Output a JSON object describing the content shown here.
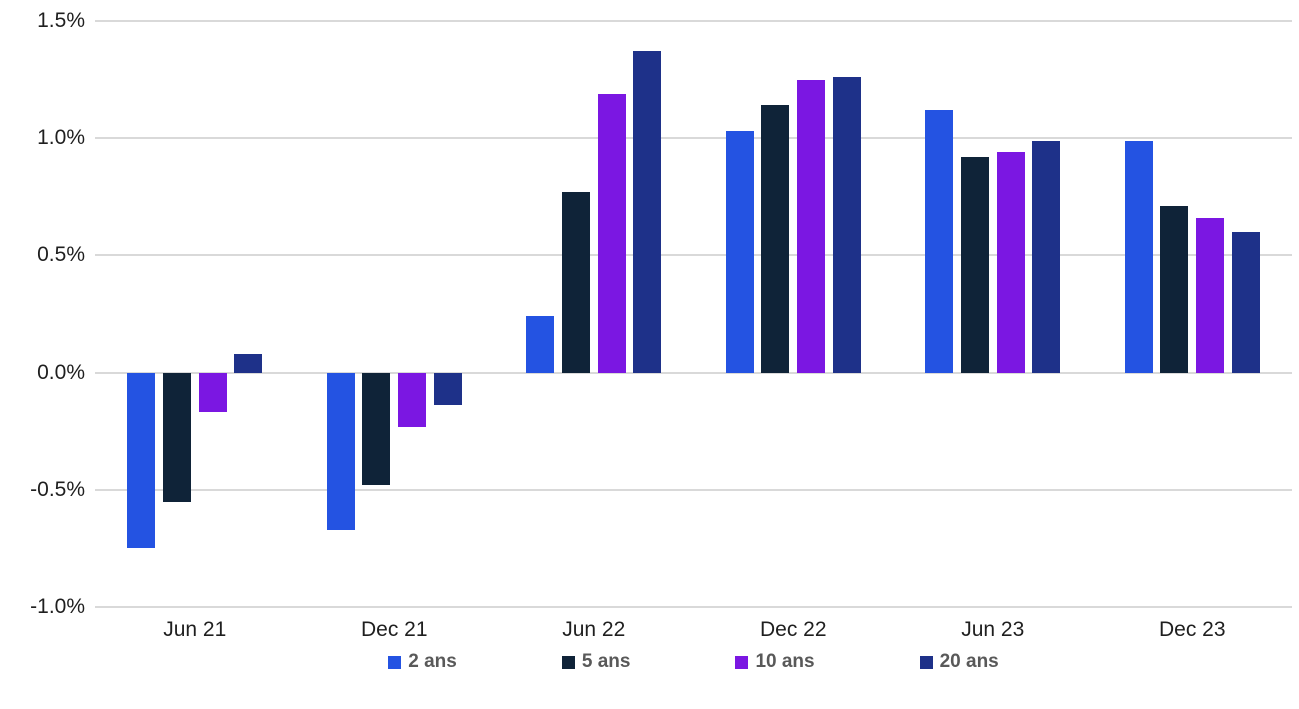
{
  "chart_data": {
    "type": "bar",
    "title": "",
    "xlabel": "",
    "ylabel": "",
    "ylim": [
      -1.0,
      1.5
    ],
    "grid": true,
    "legend_position": "bottom",
    "categories": [
      "Jun 21",
      "Dec 21",
      "Jun 22",
      "Dec 22",
      "Jun 23",
      "Dec 23"
    ],
    "yticks": [
      {
        "label": "1.5%",
        "value": 1.5
      },
      {
        "label": "1.0%",
        "value": 1.0
      },
      {
        "label": "0.5%",
        "value": 0.5
      },
      {
        "label": "0.0%",
        "value": 0.0
      },
      {
        "label": "-0.5%",
        "value": -0.5
      },
      {
        "label": "-1.0%",
        "value": -1.0
      }
    ],
    "series": [
      {
        "name": "2 ans",
        "color": "#2453E2",
        "values": [
          -0.75,
          -0.67,
          0.24,
          1.03,
          1.12,
          0.99
        ]
      },
      {
        "name": "5 ans",
        "color": "#0F2338",
        "values": [
          -0.55,
          -0.48,
          0.77,
          1.14,
          0.92,
          0.71
        ]
      },
      {
        "name": "10 ans",
        "color": "#7B17E2",
        "values": [
          -0.17,
          -0.23,
          1.19,
          1.25,
          0.94,
          0.66
        ]
      },
      {
        "name": "20 ans",
        "color": "#1E3189",
        "values": [
          0.08,
          -0.14,
          1.37,
          1.26,
          0.99,
          0.6
        ]
      }
    ],
    "colors": {
      "gridline": "#D9D9D9",
      "axis_text": "#1F1F1F",
      "legend_text": "#595959"
    }
  }
}
